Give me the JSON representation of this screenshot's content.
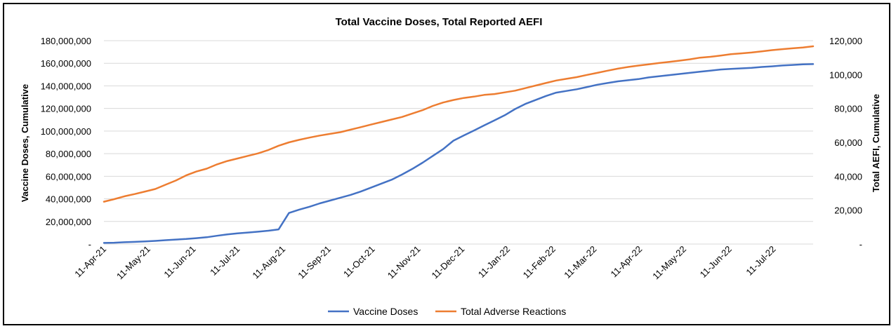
{
  "chart_data": {
    "type": "line",
    "title": "Total Vaccine Doses, Total Reported AEFI",
    "ylabel": "Vaccine Doses, Cumulative",
    "y2label": "Total AEFI, Cumulative",
    "ylim": [
      0,
      180000000
    ],
    "y2lim": [
      0,
      120000
    ],
    "y_ticks": [
      "-",
      "20,000,000",
      "40,000,000",
      "60,000,000",
      "80,000,000",
      "100,000,000",
      "120,000,000",
      "140,000,000",
      "160,000,000",
      "180,000,000"
    ],
    "y2_ticks": [
      "-",
      "20,000",
      "40,000",
      "60,000",
      "80,000",
      "100,000",
      "120,000"
    ],
    "x_ticks": [
      "11-Apr-21",
      "11-May-21",
      "11-Jun-21",
      "11-Jul-21",
      "11-Aug-21",
      "11-Sep-21",
      "11-Oct-21",
      "11-Nov-21",
      "11-Dec-21",
      "11-Jan-22",
      "11-Feb-22",
      "11-Mar-22",
      "11-Apr-22",
      "11-May-22",
      "11-Jun-22",
      "11-Jul-22"
    ],
    "grid": true,
    "legend_position": "bottom",
    "series": [
      {
        "name": "Vaccine Doses",
        "axis": "left",
        "color": "#4472C4",
        "x": [
          "2021-04-11",
          "2021-04-18",
          "2021-04-25",
          "2021-05-02",
          "2021-05-09",
          "2021-05-16",
          "2021-05-23",
          "2021-05-30",
          "2021-06-06",
          "2021-06-13",
          "2021-06-20",
          "2021-06-27",
          "2021-07-04",
          "2021-07-11",
          "2021-07-18",
          "2021-07-25",
          "2021-08-01",
          "2021-08-08",
          "2021-08-15",
          "2021-08-22",
          "2021-08-29",
          "2021-09-05",
          "2021-09-12",
          "2021-09-19",
          "2021-09-26",
          "2021-10-03",
          "2021-10-10",
          "2021-10-17",
          "2021-10-24",
          "2021-10-31",
          "2021-11-07",
          "2021-11-14",
          "2021-11-21",
          "2021-11-28",
          "2021-12-05",
          "2021-12-12",
          "2021-12-19",
          "2021-12-26",
          "2022-01-02",
          "2022-01-09",
          "2022-01-16",
          "2022-01-23",
          "2022-01-30",
          "2022-02-06",
          "2022-02-13",
          "2022-02-20",
          "2022-02-27",
          "2022-03-06",
          "2022-03-13",
          "2022-03-20",
          "2022-03-27",
          "2022-04-03",
          "2022-04-10",
          "2022-04-17",
          "2022-04-24",
          "2022-05-01",
          "2022-05-08",
          "2022-05-15",
          "2022-05-22",
          "2022-05-29",
          "2022-06-05",
          "2022-06-12",
          "2022-06-19",
          "2022-06-26",
          "2022-07-03",
          "2022-07-10",
          "2022-07-17",
          "2022-07-24",
          "2022-07-31",
          "2022-08-07"
        ],
        "values": [
          1000000,
          1200000,
          1600000,
          1900000,
          2300000,
          2800000,
          3400000,
          4000000,
          4500000,
          5200000,
          6000000,
          7300000,
          8500000,
          9500000,
          10200000,
          10900000,
          11800000,
          13000000,
          27500000,
          30500000,
          33000000,
          36000000,
          38500000,
          41000000,
          43500000,
          46500000,
          50000000,
          53500000,
          57000000,
          61500000,
          66500000,
          72000000,
          78000000,
          84000000,
          91500000,
          96000000,
          100500000,
          105000000,
          109500000,
          114000000,
          119500000,
          124000000,
          127500000,
          131000000,
          134000000,
          135500000,
          137000000,
          139000000,
          141000000,
          142500000,
          144000000,
          145000000,
          146000000,
          147500000,
          148500000,
          149500000,
          150500000,
          151500000,
          152500000,
          153500000,
          154500000,
          155000000,
          155500000,
          156000000,
          156700000,
          157300000,
          158000000,
          158500000,
          159000000,
          159300000
        ]
      },
      {
        "name": "Total Adverse Reactions",
        "axis": "right",
        "color": "#ED7D31",
        "x": [
          "2021-04-11",
          "2021-04-18",
          "2021-04-25",
          "2021-05-02",
          "2021-05-09",
          "2021-05-16",
          "2021-05-23",
          "2021-05-30",
          "2021-06-06",
          "2021-06-13",
          "2021-06-20",
          "2021-06-27",
          "2021-07-04",
          "2021-07-11",
          "2021-07-18",
          "2021-07-25",
          "2021-08-01",
          "2021-08-08",
          "2021-08-15",
          "2021-08-22",
          "2021-08-29",
          "2021-09-05",
          "2021-09-12",
          "2021-09-19",
          "2021-09-26",
          "2021-10-03",
          "2021-10-10",
          "2021-10-17",
          "2021-10-24",
          "2021-10-31",
          "2021-11-07",
          "2021-11-14",
          "2021-11-21",
          "2021-11-28",
          "2021-12-05",
          "2021-12-12",
          "2021-12-19",
          "2021-12-26",
          "2022-01-02",
          "2022-01-09",
          "2022-01-16",
          "2022-01-23",
          "2022-01-30",
          "2022-02-06",
          "2022-02-13",
          "2022-02-20",
          "2022-02-27",
          "2022-03-06",
          "2022-03-13",
          "2022-03-20",
          "2022-03-27",
          "2022-04-03",
          "2022-04-10",
          "2022-04-17",
          "2022-04-24",
          "2022-05-01",
          "2022-05-08",
          "2022-05-15",
          "2022-05-22",
          "2022-05-29",
          "2022-06-05",
          "2022-06-12",
          "2022-06-19",
          "2022-06-26",
          "2022-07-03",
          "2022-07-10",
          "2022-07-17",
          "2022-07-24",
          "2022-07-31",
          "2022-08-07"
        ],
        "values": [
          25000,
          26500,
          28200,
          29500,
          31000,
          32500,
          35000,
          37500,
          40500,
          42800,
          44500,
          47000,
          49000,
          50500,
          52000,
          53500,
          55500,
          58000,
          60000,
          61500,
          62800,
          64000,
          65000,
          66000,
          67500,
          69000,
          70500,
          72000,
          73500,
          75000,
          77000,
          79000,
          81500,
          83500,
          85000,
          86200,
          87000,
          88000,
          88500,
          89500,
          90500,
          92000,
          93500,
          95000,
          96500,
          97500,
          98500,
          99800,
          101000,
          102300,
          103500,
          104500,
          105300,
          106000,
          106800,
          107500,
          108200,
          109000,
          110000,
          110500,
          111200,
          112000,
          112500,
          113000,
          113700,
          114400,
          115000,
          115500,
          116000,
          116700
        ]
      }
    ]
  }
}
